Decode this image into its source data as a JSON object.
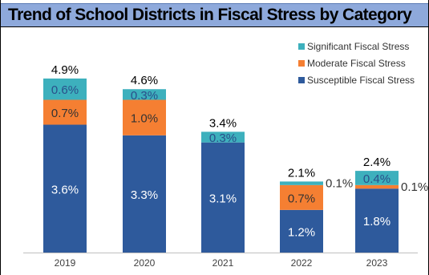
{
  "chart_data": {
    "type": "bar",
    "stacked": true,
    "title": "Trend of School Districts in Fiscal Stress by Category",
    "categories": [
      "2019",
      "2020",
      "2021",
      "2022",
      "2023"
    ],
    "totals": [
      "4.9%",
      "4.6%",
      "3.4%",
      "2.1%",
      "2.4%"
    ],
    "series": [
      {
        "name": "Susceptible Fiscal Stress",
        "color": "#2e5a9c",
        "values": [
          3.6,
          3.3,
          3.1,
          1.2,
          1.8
        ],
        "labels": [
          "3.6%",
          "3.3%",
          "3.1%",
          "1.2%",
          "1.8%"
        ]
      },
      {
        "name": "Moderate Fiscal Stress",
        "color": "#f57f32",
        "values": [
          0.7,
          1.0,
          0.0,
          0.7,
          0.1
        ],
        "labels": [
          "0.7%",
          "1.0%",
          "",
          "0.7%",
          "0.1%"
        ]
      },
      {
        "name": "Significant Fiscal Stress",
        "color": "#3db0bd",
        "values": [
          0.6,
          0.3,
          0.3,
          0.1,
          0.4
        ],
        "labels": [
          "0.6%",
          "0.3%",
          "0.3%",
          "0.1%",
          "0.4%"
        ]
      }
    ],
    "legend_position": "top-right",
    "grid": false
  }
}
